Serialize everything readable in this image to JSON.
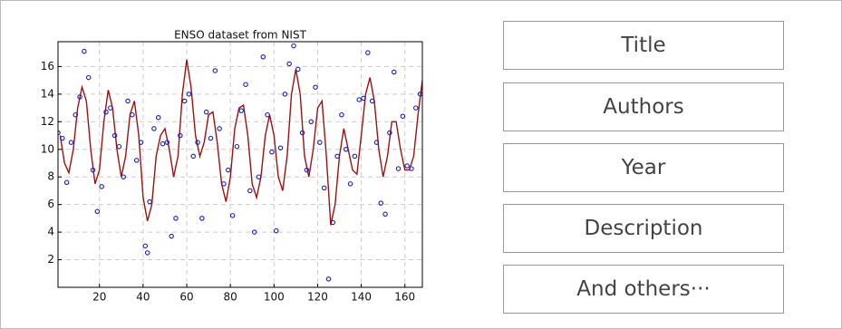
{
  "chart_data": {
    "type": "scatter",
    "title": "ENSO dataset from NIST",
    "xlim": [
      1,
      168
    ],
    "ylim": [
      0,
      17.8
    ],
    "xticks": [
      20,
      40,
      60,
      80,
      100,
      120,
      140,
      160
    ],
    "yticks": [
      2,
      4,
      6,
      8,
      10,
      12,
      14,
      16
    ],
    "grid": true,
    "points": {
      "color": "#1a1acc",
      "x": [
        1,
        3,
        5,
        7,
        9,
        11,
        13,
        15,
        17,
        19,
        21,
        23,
        25,
        27,
        29,
        31,
        33,
        35,
        37,
        39,
        41,
        42,
        43,
        45,
        47,
        49,
        51,
        53,
        55,
        57,
        59,
        61,
        63,
        65,
        67,
        69,
        71,
        73,
        75,
        77,
        79,
        81,
        83,
        85,
        87,
        89,
        91,
        93,
        95,
        97,
        99,
        101,
        103,
        105,
        107,
        109,
        111,
        113,
        115,
        117,
        119,
        121,
        123,
        125,
        127,
        129,
        131,
        133,
        135,
        137,
        139,
        141,
        143,
        145,
        147,
        149,
        151,
        153,
        155,
        157,
        159,
        161,
        163,
        165,
        167
      ],
      "values": [
        11.2,
        10.8,
        7.6,
        10.5,
        12.5,
        13.8,
        17.1,
        15.2,
        8.5,
        5.5,
        7.3,
        12.7,
        13,
        11,
        10.2,
        8,
        13.5,
        12.5,
        9.2,
        10.5,
        3,
        2.5,
        6.2,
        11.5,
        12.3,
        10.4,
        10.5,
        3.7,
        5,
        11,
        13.5,
        14,
        9.5,
        10.5,
        5,
        12.7,
        10.8,
        15.7,
        11.5,
        7.5,
        8.5,
        5.2,
        10.2,
        12.8,
        14.7,
        7,
        4,
        8,
        16.7,
        12.5,
        9.8,
        4.1,
        10.1,
        14,
        16.2,
        17.5,
        15.8,
        11.2,
        8.5,
        12,
        14.5,
        10.5,
        7.2,
        0.6,
        4.7,
        9.5,
        12.5,
        10,
        7.5,
        9.5,
        13.6,
        13.7,
        17,
        13.5,
        10.5,
        6.1,
        5.3,
        11.2,
        15.6,
        8.6,
        12.4,
        8.8,
        8.6,
        13,
        14
      ]
    },
    "fit": {
      "color": "#a01010",
      "x": [
        2,
        4,
        6,
        8,
        10,
        12,
        14,
        16,
        18,
        20,
        22,
        24,
        26,
        28,
        30,
        32,
        34,
        36,
        38,
        40,
        42,
        44,
        46,
        48,
        50,
        52,
        54,
        56,
        58,
        60,
        62,
        64,
        66,
        68,
        70,
        72,
        74,
        76,
        78,
        80,
        82,
        84,
        86,
        88,
        90,
        92,
        94,
        96,
        98,
        100,
        102,
        104,
        106,
        108,
        110,
        112,
        114,
        116,
        118,
        120,
        122,
        124,
        126,
        128,
        130,
        132,
        134,
        136,
        138,
        140,
        142,
        144,
        146,
        148,
        150,
        152,
        154,
        156,
        158,
        160,
        162,
        164,
        166,
        168
      ],
      "values": [
        11,
        9,
        8.3,
        10,
        13,
        14.5,
        13.5,
        10,
        7.5,
        8.5,
        12,
        14.3,
        13,
        10,
        8,
        9.5,
        12.5,
        13.5,
        11,
        6.5,
        4.8,
        6,
        9.5,
        11,
        11.5,
        10,
        8,
        9.5,
        14,
        16.5,
        14.5,
        11,
        9.5,
        10.5,
        12.5,
        12.7,
        10.5,
        7.5,
        6.2,
        8,
        11.5,
        13,
        13.2,
        11,
        7.5,
        6.5,
        8,
        11,
        12.5,
        11,
        8,
        7,
        9.5,
        14,
        15.8,
        14,
        9.5,
        8,
        10,
        13,
        13.5,
        9.5,
        4.5,
        6,
        9.5,
        11.5,
        10,
        8.5,
        8.2,
        11,
        14,
        15.2,
        13.5,
        10,
        8,
        9.5,
        12,
        12,
        10,
        8.5,
        8.5,
        9.5,
        12.5,
        15
      ]
    }
  },
  "labels": [
    "Title",
    "Authors",
    "Year",
    "Description",
    "And others···"
  ]
}
